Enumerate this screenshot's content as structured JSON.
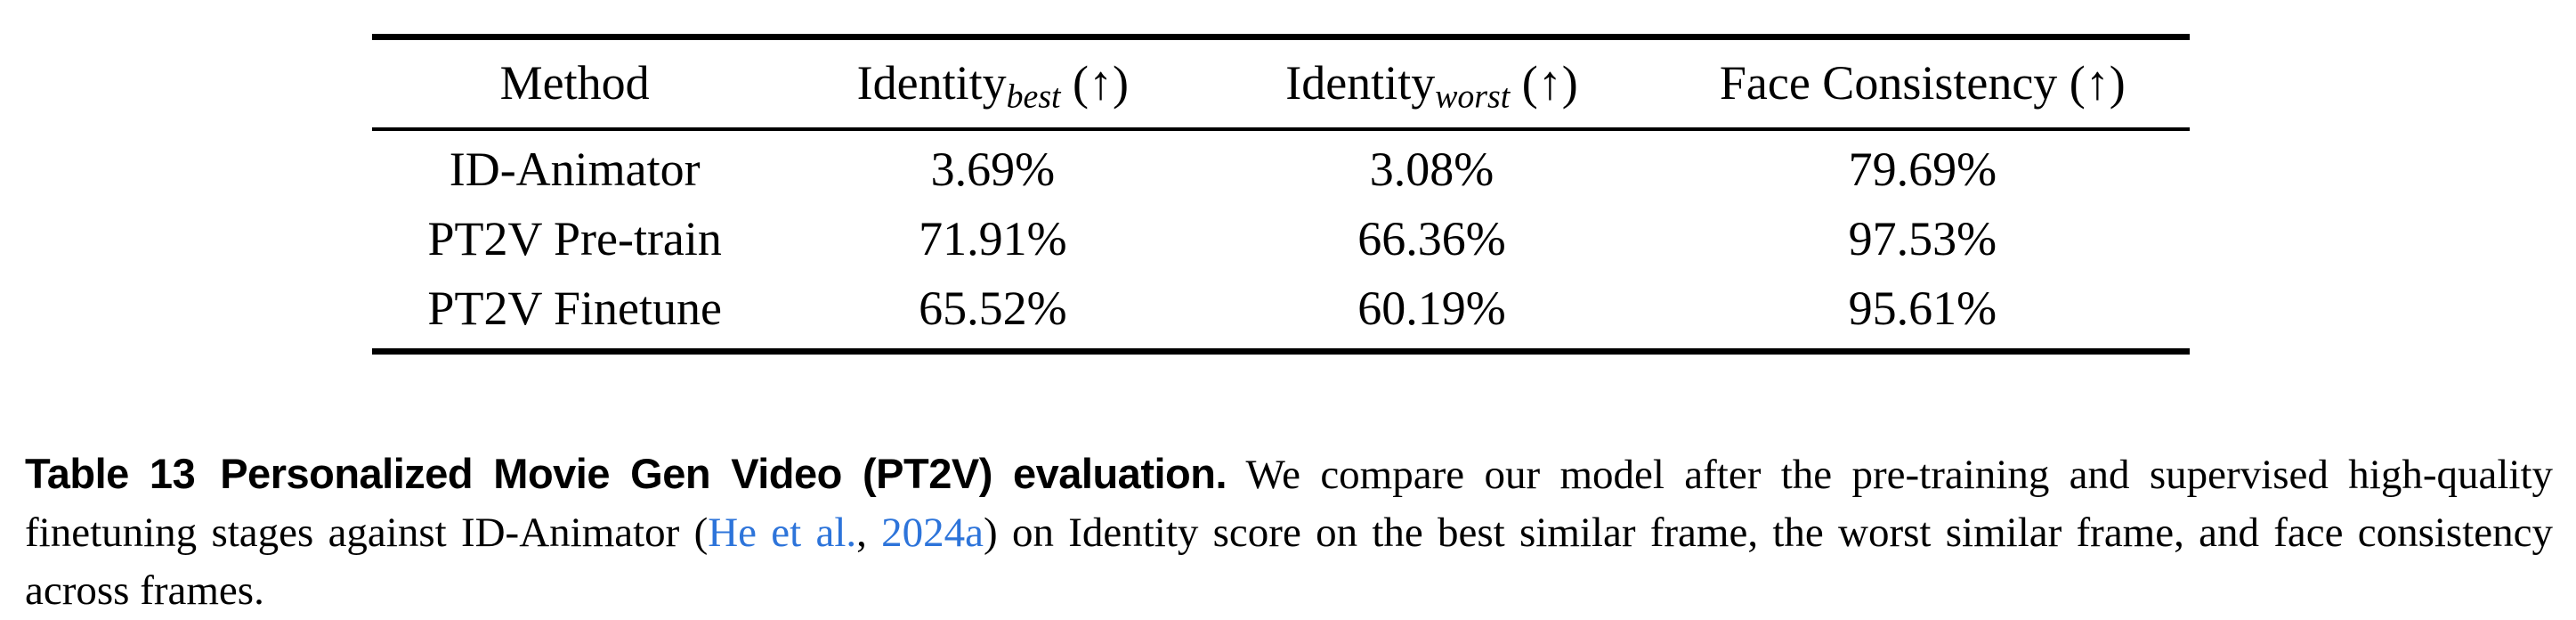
{
  "colors": {
    "background": "#ffffff",
    "text": "#000000",
    "rule": "#000000",
    "citation_link": "#2d74da"
  },
  "table": {
    "columns": [
      {
        "label": "Method",
        "sub": "",
        "suffix": ""
      },
      {
        "label": "Identity",
        "sub": "best",
        "suffix": " (↑)"
      },
      {
        "label": "Identity",
        "sub": "worst",
        "suffix": " (↑)"
      },
      {
        "label": "Face Consistency",
        "sub": "",
        "suffix": " (↑)"
      }
    ],
    "rows": [
      {
        "method": "ID-Animator",
        "identity_best": "3.69%",
        "identity_worst": "3.08%",
        "face_consistency": "79.69%"
      },
      {
        "method": "PT2V Pre-train",
        "identity_best": "71.91%",
        "identity_worst": "66.36%",
        "face_consistency": "97.53%"
      },
      {
        "method": "PT2V Finetune",
        "identity_best": "65.52%",
        "identity_worst": "60.19%",
        "face_consistency": "95.61%"
      }
    ]
  },
  "caption": {
    "label": "Table 13",
    "title": "Personalized Movie Gen Video (PT2V) evaluation.",
    "body_before_cite": " We compare our model after the pre-training and supervised high-quality finetuning stages against ID-Animator (",
    "cite_authors": "He et al.",
    "cite_separator": ", ",
    "cite_year": "2024a",
    "body_after_cite": ") on Identity score on the best similar frame, the worst similar frame, and face consistency across frames."
  }
}
